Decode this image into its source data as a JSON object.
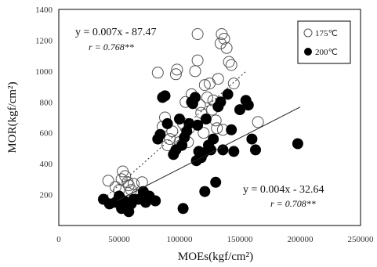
{
  "chart_data": {
    "type": "scatter",
    "xlabel": "MOEs(kgf/cm²)",
    "ylabel": "MOR(kgf/cm²)",
    "xlim": [
      0,
      250000
    ],
    "ylim": [
      0,
      1400
    ],
    "x_ticks": [
      "0",
      "50000",
      "100000",
      "150000",
      "200000",
      "250000"
    ],
    "y_ticks": [
      "200",
      "400",
      "600",
      "800",
      "1000",
      "1200",
      "1400"
    ],
    "grid": false,
    "legend_position": "top-right",
    "series": [
      {
        "name": "175℃",
        "marker": "open-circle",
        "color": "#555555",
        "trendline": {
          "style": "dotted",
          "x_range": [
            40000,
            155000
          ],
          "equation": "y = 0.007x - 87.47",
          "r": "r = 0.768**"
        },
        "points": [
          [
            41000,
            290
          ],
          [
            47000,
            250
          ],
          [
            50000,
            230
          ],
          [
            52000,
            300
          ],
          [
            53000,
            350
          ],
          [
            55000,
            320
          ],
          [
            57000,
            280
          ],
          [
            58000,
            260
          ],
          [
            60000,
            230
          ],
          [
            62000,
            270
          ],
          [
            65000,
            200
          ],
          [
            69000,
            280
          ],
          [
            82000,
            990
          ],
          [
            86000,
            640
          ],
          [
            88000,
            700
          ],
          [
            90000,
            520
          ],
          [
            92000,
            560
          ],
          [
            94000,
            610
          ],
          [
            97000,
            980
          ],
          [
            98000,
            1010
          ],
          [
            100000,
            540
          ],
          [
            101000,
            520
          ],
          [
            103000,
            660
          ],
          [
            105000,
            800
          ],
          [
            108000,
            630
          ],
          [
            110000,
            850
          ],
          [
            113000,
            1000
          ],
          [
            115000,
            1070
          ],
          [
            117000,
            780
          ],
          [
            118000,
            730
          ],
          [
            120000,
            600
          ],
          [
            121000,
            910
          ],
          [
            123000,
            830
          ],
          [
            125000,
            920
          ],
          [
            127000,
            750
          ],
          [
            128000,
            810
          ],
          [
            130000,
            680
          ],
          [
            131000,
            630
          ],
          [
            132000,
            950
          ],
          [
            134000,
            1180
          ],
          [
            135000,
            1240
          ],
          [
            136000,
            620
          ],
          [
            137000,
            1210
          ],
          [
            139000,
            1150
          ],
          [
            141000,
            1060
          ],
          [
            143000,
            1040
          ],
          [
            145000,
            920
          ],
          [
            165000,
            670
          ],
          [
            115000,
            1240
          ],
          [
            107000,
            540
          ]
        ]
      },
      {
        "name": "200℃",
        "marker": "filled-circle",
        "color": "#000000",
        "trendline": {
          "style": "solid",
          "x_range": [
            48000,
            200000
          ],
          "equation": "y = 0.004x - 32.64",
          "r": "r = 0.708**"
        },
        "points": [
          [
            37000,
            170
          ],
          [
            42000,
            140
          ],
          [
            47000,
            150
          ],
          [
            50000,
            190
          ],
          [
            52000,
            110
          ],
          [
            54000,
            160
          ],
          [
            57000,
            130
          ],
          [
            58000,
            90
          ],
          [
            60000,
            140
          ],
          [
            62000,
            170
          ],
          [
            66000,
            170
          ],
          [
            70000,
            220
          ],
          [
            72000,
            150
          ],
          [
            75000,
            190
          ],
          [
            80000,
            160
          ],
          [
            82000,
            560
          ],
          [
            84000,
            590
          ],
          [
            86000,
            830
          ],
          [
            88000,
            840
          ],
          [
            90000,
            660
          ],
          [
            95000,
            460
          ],
          [
            97000,
            490
          ],
          [
            100000,
            690
          ],
          [
            102000,
            520
          ],
          [
            103000,
            110
          ],
          [
            104000,
            570
          ],
          [
            106000,
            610
          ],
          [
            108000,
            660
          ],
          [
            110000,
            800
          ],
          [
            111000,
            790
          ],
          [
            113000,
            830
          ],
          [
            114000,
            420
          ],
          [
            115000,
            650
          ],
          [
            116000,
            480
          ],
          [
            118000,
            440
          ],
          [
            120000,
            470
          ],
          [
            121000,
            220
          ],
          [
            122000,
            690
          ],
          [
            124000,
            520
          ],
          [
            126000,
            490
          ],
          [
            128000,
            560
          ],
          [
            130000,
            280
          ],
          [
            132000,
            770
          ],
          [
            134000,
            800
          ],
          [
            136000,
            490
          ],
          [
            140000,
            850
          ],
          [
            143000,
            620
          ],
          [
            145000,
            480
          ],
          [
            150000,
            750
          ],
          [
            155000,
            810
          ],
          [
            157000,
            780
          ],
          [
            160000,
            560
          ],
          [
            163000,
            490
          ],
          [
            198000,
            530
          ]
        ]
      }
    ]
  }
}
